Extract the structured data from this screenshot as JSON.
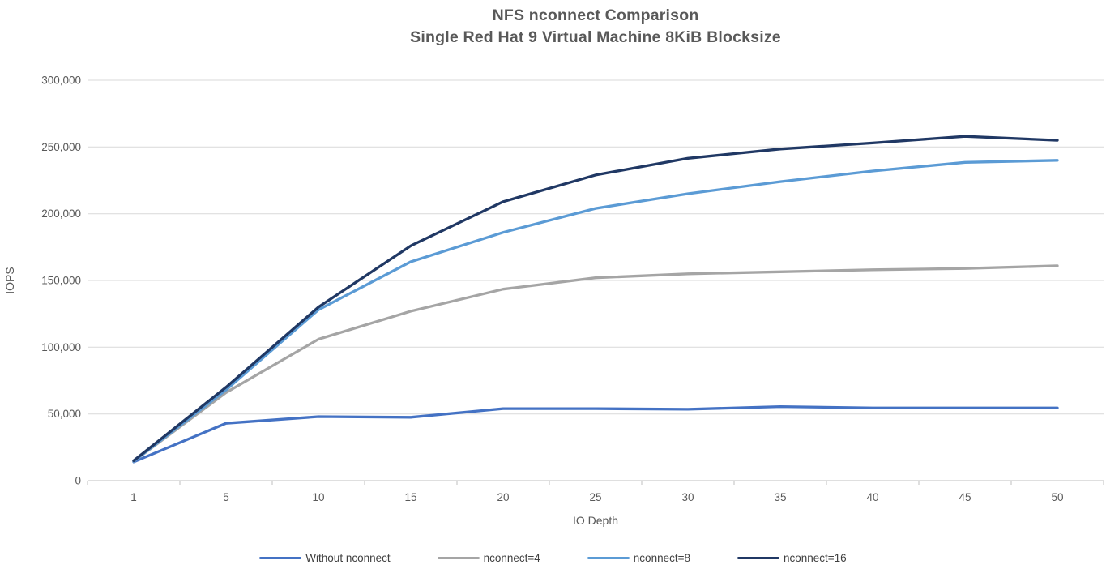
{
  "title": {
    "line1": "NFS nconnect Comparison",
    "line2": "Single Red Hat 9 Virtual Machine 8KiB Blocksize"
  },
  "chart_data": {
    "type": "line",
    "title": "NFS nconnect Comparison",
    "subtitle": "Single Red Hat 9 Virtual Machine 8KiB Blocksize",
    "xlabel": "IO Depth",
    "ylabel": "IOPS",
    "categories": [
      "1",
      "5",
      "10",
      "15",
      "20",
      "25",
      "30",
      "35",
      "40",
      "45",
      "50"
    ],
    "ylim": [
      0,
      300000
    ],
    "ytick_step": 50000,
    "ytick_labels": [
      "0",
      "50,000",
      "100,000",
      "150,000",
      "200,000",
      "250,000",
      "300,000"
    ],
    "grid": true,
    "legend_position": "bottom",
    "series": [
      {
        "name": "Without nconnect",
        "color": "#4472C4",
        "values": [
          14000,
          43000,
          48000,
          47500,
          54000,
          54000,
          53500,
          55500,
          54500,
          54500,
          54500
        ]
      },
      {
        "name": "nconnect=4",
        "color": "#A5A5A5",
        "values": [
          14500,
          66000,
          106000,
          127000,
          143500,
          152000,
          155000,
          156500,
          158000,
          159000,
          161000
        ]
      },
      {
        "name": "nconnect=8",
        "color": "#5B9BD5",
        "values": [
          14500,
          68000,
          128000,
          164000,
          186000,
          204000,
          215000,
          224000,
          232000,
          238500,
          240000
        ]
      },
      {
        "name": "nconnect=16",
        "color": "#203864",
        "values": [
          15000,
          70000,
          130000,
          176000,
          209000,
          229000,
          241500,
          248500,
          253000,
          258000,
          255000
        ]
      }
    ]
  },
  "style_colors": {
    "gridline": "#D9D9D9",
    "axis_line": "#BFBFBF",
    "tick_text": "#595959",
    "title_text": "#595959"
  }
}
